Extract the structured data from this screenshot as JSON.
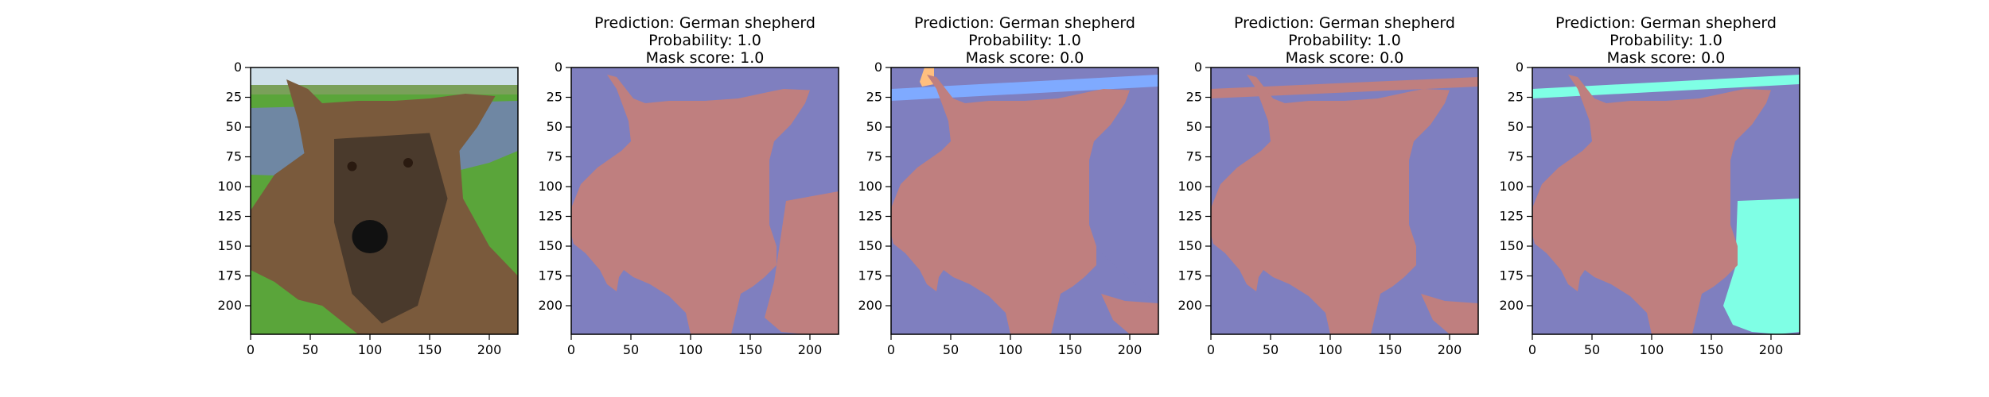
{
  "colors": {
    "background_class": "#7f7fbf",
    "dog_class": "#bf7f7f",
    "blue_class": "#7faaff",
    "orange_class": "#ffbf7f",
    "cyan_class": "#7fffe5",
    "axis": "#000000"
  },
  "chart_data": [
    {
      "type": "image",
      "title": [],
      "image_content": "photo-of-german-shepherd",
      "xlim": [
        0,
        224
      ],
      "ylim": [
        224,
        0
      ],
      "xticks": [
        0,
        50,
        100,
        150,
        200
      ],
      "yticks": [
        0,
        25,
        50,
        75,
        100,
        125,
        150,
        175,
        200
      ]
    },
    {
      "type": "heatmap",
      "title": [
        "Prediction: German shepherd",
        "Probability: 1.0",
        "Mask score: 1.0"
      ],
      "segments": [
        "background_class",
        "dog_class"
      ],
      "xlim": [
        0,
        224
      ],
      "ylim": [
        224,
        0
      ],
      "xticks": [
        0,
        50,
        100,
        150,
        200
      ],
      "yticks": [
        0,
        25,
        50,
        75,
        100,
        125,
        150,
        175,
        200
      ]
    },
    {
      "type": "heatmap",
      "title": [
        "Prediction: German shepherd",
        "Probability: 1.0",
        "Mask score: 0.0"
      ],
      "segments": [
        "background_class",
        "dog_class",
        "blue_class",
        "orange_class"
      ],
      "xlim": [
        0,
        224
      ],
      "ylim": [
        224,
        0
      ],
      "xticks": [
        0,
        50,
        100,
        150,
        200
      ],
      "yticks": [
        0,
        25,
        50,
        75,
        100,
        125,
        150,
        175,
        200
      ]
    },
    {
      "type": "heatmap",
      "title": [
        "Prediction: German shepherd",
        "Probability: 1.0",
        "Mask score: 0.0"
      ],
      "segments": [
        "background_class",
        "dog_class"
      ],
      "xlim": [
        0,
        224
      ],
      "ylim": [
        224,
        0
      ],
      "xticks": [
        0,
        50,
        100,
        150,
        200
      ],
      "yticks": [
        0,
        25,
        50,
        75,
        100,
        125,
        150,
        175,
        200
      ]
    },
    {
      "type": "heatmap",
      "title": [
        "Prediction: German shepherd",
        "Probability: 1.0",
        "Mask score: 0.0"
      ],
      "segments": [
        "background_class",
        "dog_class",
        "cyan_class"
      ],
      "xlim": [
        0,
        224
      ],
      "ylim": [
        224,
        0
      ],
      "xticks": [
        0,
        50,
        100,
        150,
        200
      ],
      "yticks": [
        0,
        25,
        50,
        75,
        100,
        125,
        150,
        175,
        200
      ]
    }
  ]
}
